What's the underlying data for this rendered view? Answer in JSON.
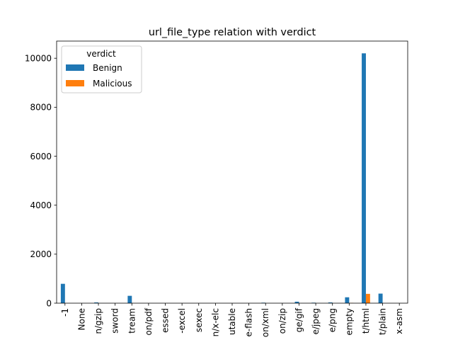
{
  "chart_data": {
    "type": "bar",
    "title": "url_file_type relation with verdict",
    "xlabel": "",
    "ylabel": "",
    "ylim": [
      0,
      10700
    ],
    "yticks": [
      0,
      2000,
      4000,
      6000,
      8000,
      10000
    ],
    "grid": false,
    "legend_placement": "top-left",
    "legend_title": "verdict",
    "categories": [
      "-1",
      "None",
      "n/gzip",
      "sword",
      "tream",
      "on/pdf",
      "essed",
      "-excel",
      "sexec",
      "n/x-elc",
      "utable",
      "e-flash",
      "on/xml",
      "on/zip",
      "ge/gif",
      "e/jpeg",
      "e/png",
      "empty",
      "t/html",
      "t/plain",
      "x-asm"
    ],
    "series": [
      {
        "name": "Benign",
        "color": "#1f77b4",
        "values": [
          790,
          0,
          30,
          0,
          300,
          0,
          0,
          0,
          0,
          0,
          0,
          0,
          20,
          0,
          60,
          20,
          30,
          240,
          10200,
          390,
          0
        ]
      },
      {
        "name": "Malicious",
        "color": "#ff7f0e",
        "values": [
          0,
          0,
          0,
          0,
          0,
          0,
          0,
          0,
          0,
          0,
          0,
          0,
          0,
          0,
          0,
          0,
          0,
          10,
          380,
          0,
          0
        ]
      }
    ]
  }
}
